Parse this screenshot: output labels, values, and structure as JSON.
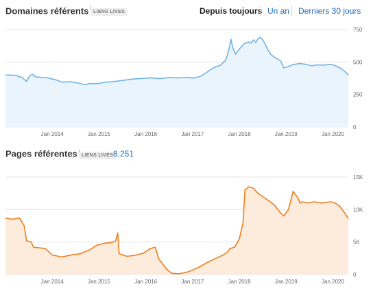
{
  "header": {
    "domains_title": "Domaines référents",
    "info_glyph": "i",
    "domains_badge": "LIENS LIVES",
    "periods": [
      "Depuis toujours",
      "Un an",
      "Derniers 30 jours"
    ],
    "active_period": "Depuis toujours"
  },
  "pages_header": {
    "title": "Pages référentes",
    "info_glyph": "i",
    "badge": "LIENS LIVES",
    "count": "8,251"
  },
  "colors": {
    "domains_line": "#6fb3e8",
    "domains_fill": "#eaf4fd",
    "pages_line": "#ef7d1a",
    "pages_fill": "#fdebdc",
    "grid": "#e4e4e4"
  },
  "chart_data": [
    {
      "type": "area",
      "title": "Domaines référents",
      "x_ticks": [
        "Jan 2014",
        "Jan 2015",
        "Jan 2016",
        "Jan 2017",
        "Jan 2018",
        "Jan 2019",
        "Jan 2020"
      ],
      "y_ticks": [
        "750",
        "500",
        "250",
        "0"
      ],
      "ylim": [
        0,
        750
      ],
      "xlim": [
        2013.0,
        2020.33
      ],
      "grid": true,
      "points": [
        [
          2013.0,
          400
        ],
        [
          2013.2,
          398
        ],
        [
          2013.35,
          382
        ],
        [
          2013.45,
          350
        ],
        [
          2013.52,
          395
        ],
        [
          2013.58,
          405
        ],
        [
          2013.65,
          385
        ],
        [
          2013.9,
          378
        ],
        [
          2014.1,
          360
        ],
        [
          2014.2,
          345
        ],
        [
          2014.4,
          348
        ],
        [
          2014.55,
          338
        ],
        [
          2014.7,
          325
        ],
        [
          2014.8,
          335
        ],
        [
          2014.95,
          332
        ],
        [
          2015.1,
          343
        ],
        [
          2015.3,
          348
        ],
        [
          2015.5,
          358
        ],
        [
          2015.7,
          368
        ],
        [
          2015.9,
          373
        ],
        [
          2016.1,
          378
        ],
        [
          2016.3,
          372
        ],
        [
          2016.5,
          380
        ],
        [
          2016.7,
          378
        ],
        [
          2016.9,
          382
        ],
        [
          2017.0,
          376
        ],
        [
          2017.1,
          382
        ],
        [
          2017.2,
          395
        ],
        [
          2017.3,
          420
        ],
        [
          2017.4,
          445
        ],
        [
          2017.5,
          465
        ],
        [
          2017.6,
          475
        ],
        [
          2017.65,
          495
        ],
        [
          2017.7,
          510
        ],
        [
          2017.75,
          560
        ],
        [
          2017.78,
          600
        ],
        [
          2017.82,
          675
        ],
        [
          2017.86,
          610
        ],
        [
          2017.92,
          560
        ],
        [
          2018.0,
          600
        ],
        [
          2018.1,
          640
        ],
        [
          2018.2,
          655
        ],
        [
          2018.25,
          645
        ],
        [
          2018.3,
          670
        ],
        [
          2018.35,
          650
        ],
        [
          2018.4,
          680
        ],
        [
          2018.45,
          690
        ],
        [
          2018.5,
          670
        ],
        [
          2018.55,
          640
        ],
        [
          2018.6,
          600
        ],
        [
          2018.68,
          555
        ],
        [
          2018.78,
          530
        ],
        [
          2018.88,
          510
        ],
        [
          2018.95,
          455
        ],
        [
          2019.05,
          465
        ],
        [
          2019.15,
          480
        ],
        [
          2019.3,
          488
        ],
        [
          2019.45,
          480
        ],
        [
          2019.55,
          470
        ],
        [
          2019.65,
          478
        ],
        [
          2019.8,
          476
        ],
        [
          2019.95,
          482
        ],
        [
          2020.05,
          472
        ],
        [
          2020.15,
          455
        ],
        [
          2020.25,
          430
        ],
        [
          2020.33,
          400
        ]
      ]
    },
    {
      "type": "area",
      "title": "Pages référentes",
      "x_ticks": [
        "Jan 2014",
        "Jan 2015",
        "Jan 2016",
        "Jan 2017",
        "Jan 2018",
        "Jan 2019",
        "Jan 2020"
      ],
      "y_ticks": [
        "15K",
        "10K",
        "5K",
        "0"
      ],
      "ylim": [
        0,
        15000
      ],
      "xlim": [
        2013.0,
        2020.33
      ],
      "grid": true,
      "points": [
        [
          2013.0,
          8700
        ],
        [
          2013.15,
          8500
        ],
        [
          2013.3,
          8700
        ],
        [
          2013.4,
          7500
        ],
        [
          2013.45,
          5200
        ],
        [
          2013.55,
          5000
        ],
        [
          2013.6,
          4200
        ],
        [
          2013.85,
          4000
        ],
        [
          2014.0,
          3000
        ],
        [
          2014.2,
          2700
        ],
        [
          2014.4,
          3000
        ],
        [
          2014.6,
          3200
        ],
        [
          2014.8,
          3800
        ],
        [
          2014.95,
          4500
        ],
        [
          2015.1,
          4800
        ],
        [
          2015.25,
          4900
        ],
        [
          2015.35,
          5100
        ],
        [
          2015.4,
          6400
        ],
        [
          2015.43,
          3200
        ],
        [
          2015.6,
          2800
        ],
        [
          2015.8,
          3000
        ],
        [
          2015.95,
          3300
        ],
        [
          2016.1,
          4000
        ],
        [
          2016.2,
          4200
        ],
        [
          2016.28,
          2400
        ],
        [
          2016.45,
          800
        ],
        [
          2016.55,
          200
        ],
        [
          2016.7,
          100
        ],
        [
          2016.9,
          400
        ],
        [
          2017.1,
          1000
        ],
        [
          2017.3,
          1800
        ],
        [
          2017.5,
          2500
        ],
        [
          2017.65,
          3000
        ],
        [
          2017.75,
          3500
        ],
        [
          2017.8,
          4000
        ],
        [
          2017.9,
          4200
        ],
        [
          2018.0,
          5500
        ],
        [
          2018.08,
          8000
        ],
        [
          2018.12,
          13000
        ],
        [
          2018.2,
          13500
        ],
        [
          2018.3,
          13300
        ],
        [
          2018.4,
          12500
        ],
        [
          2018.6,
          11500
        ],
        [
          2018.75,
          10700
        ],
        [
          2018.88,
          9500
        ],
        [
          2018.95,
          9000
        ],
        [
          2019.05,
          10000
        ],
        [
          2019.15,
          12800
        ],
        [
          2019.25,
          11800
        ],
        [
          2019.3,
          11000
        ],
        [
          2019.35,
          11200
        ],
        [
          2019.45,
          11000
        ],
        [
          2019.6,
          11200
        ],
        [
          2019.75,
          11000
        ],
        [
          2019.85,
          11100
        ],
        [
          2019.95,
          11200
        ],
        [
          2020.05,
          11000
        ],
        [
          2020.15,
          10500
        ],
        [
          2020.25,
          9500
        ],
        [
          2020.33,
          8600
        ]
      ]
    }
  ]
}
